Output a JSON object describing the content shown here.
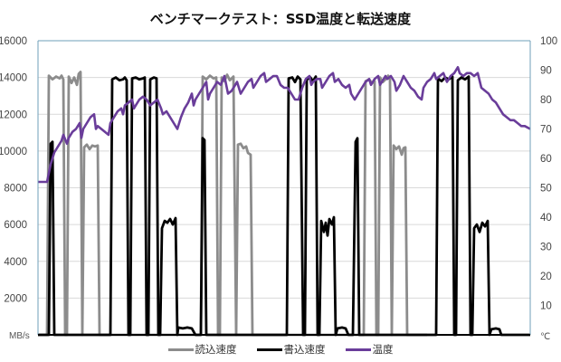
{
  "chart_data": {
    "type": "line",
    "title": "ベンチマークテスト：SSD温度と転送速度",
    "xlabel": "",
    "y_left": {
      "label": "MB/s",
      "ticks": [
        2000,
        4000,
        6000,
        8000,
        10000,
        12000,
        14000,
        16000
      ],
      "range": [
        0,
        16000
      ]
    },
    "y_right": {
      "label": "℃",
      "ticks": [
        10,
        20,
        30,
        40,
        50,
        60,
        70,
        80,
        90,
        100
      ],
      "range": [
        0,
        100
      ]
    },
    "grid": true,
    "legend_position": "bottom",
    "x_range": [
      0,
      544
    ],
    "series": [
      {
        "name": "読込速度",
        "axis": "left",
        "color": "#8c8c8c",
        "points": [
          [
            0,
            0
          ],
          [
            10,
            0
          ],
          [
            12,
            14100
          ],
          [
            16,
            13900
          ],
          [
            20,
            14050
          ],
          [
            24,
            13950
          ],
          [
            26,
            14100
          ],
          [
            28,
            13900
          ],
          [
            30,
            0
          ],
          [
            32,
            0
          ],
          [
            34,
            14050
          ],
          [
            37,
            13700
          ],
          [
            40,
            14000
          ],
          [
            43,
            13600
          ],
          [
            45,
            14200
          ],
          [
            47,
            14300
          ],
          [
            49,
            0
          ],
          [
            51,
            10200
          ],
          [
            54,
            10350
          ],
          [
            57,
            10100
          ],
          [
            60,
            10300
          ],
          [
            63,
            10250
          ],
          [
            66,
            10300
          ],
          [
            68,
            0
          ],
          [
            95,
            0
          ],
          [
            180,
            0
          ],
          [
            182,
            14050
          ],
          [
            186,
            13900
          ],
          [
            190,
            14100
          ],
          [
            194,
            13950
          ],
          [
            197,
            14000
          ],
          [
            199,
            0
          ],
          [
            201,
            0
          ],
          [
            203,
            14000
          ],
          [
            206,
            13800
          ],
          [
            209,
            14150
          ],
          [
            212,
            13850
          ],
          [
            216,
            14050
          ],
          [
            219,
            0
          ],
          [
            221,
            10350
          ],
          [
            224,
            10400
          ],
          [
            227,
            10150
          ],
          [
            230,
            10250
          ],
          [
            232,
            9900
          ],
          [
            235,
            9800
          ],
          [
            237,
            0
          ],
          [
            240,
            0
          ],
          [
            360,
            0
          ],
          [
            362,
            13800
          ],
          [
            366,
            13900
          ],
          [
            369,
            13700
          ],
          [
            372,
            13800
          ],
          [
            374,
            0
          ],
          [
            376,
            0
          ],
          [
            378,
            14000
          ],
          [
            381,
            13750
          ],
          [
            384,
            13900
          ],
          [
            387,
            14100
          ],
          [
            389,
            13900
          ],
          [
            391,
            0
          ],
          [
            393,
            10300
          ],
          [
            396,
            10100
          ],
          [
            399,
            10250
          ],
          [
            402,
            9800
          ],
          [
            404,
            10150
          ],
          [
            406,
            10200
          ],
          [
            408,
            0
          ],
          [
            430,
            0
          ]
        ]
      },
      {
        "name": "書込速度",
        "axis": "left",
        "color": "#000000",
        "points": [
          [
            0,
            0
          ],
          [
            12,
            0
          ],
          [
            14,
            10400
          ],
          [
            16,
            10500
          ],
          [
            18,
            0
          ],
          [
            80,
            0
          ],
          [
            82,
            13900
          ],
          [
            86,
            14000
          ],
          [
            90,
            13850
          ],
          [
            94,
            13900
          ],
          [
            96,
            14000
          ],
          [
            98,
            13850
          ],
          [
            100,
            0
          ],
          [
            102,
            0
          ],
          [
            104,
            13950
          ],
          [
            108,
            14000
          ],
          [
            112,
            13900
          ],
          [
            116,
            13950
          ],
          [
            118,
            14000
          ],
          [
            120,
            0
          ],
          [
            122,
            0
          ],
          [
            124,
            13900
          ],
          [
            128,
            14000
          ],
          [
            131,
            13950
          ],
          [
            133,
            0
          ],
          [
            135,
            0
          ],
          [
            137,
            5800
          ],
          [
            140,
            6200
          ],
          [
            143,
            6100
          ],
          [
            146,
            6300
          ],
          [
            149,
            6000
          ],
          [
            152,
            6350
          ],
          [
            154,
            0
          ],
          [
            155,
            400
          ],
          [
            160,
            350
          ],
          [
            165,
            400
          ],
          [
            170,
            350
          ],
          [
            174,
            0
          ],
          [
            180,
            0
          ],
          [
            182,
            10700
          ],
          [
            184,
            10600
          ],
          [
            186,
            0
          ],
          [
            275,
            0
          ],
          [
            277,
            13950
          ],
          [
            281,
            14000
          ],
          [
            284,
            13750
          ],
          [
            287,
            14050
          ],
          [
            290,
            13900
          ],
          [
            293,
            0
          ],
          [
            295,
            0
          ],
          [
            297,
            13900
          ],
          [
            301,
            14000
          ],
          [
            304,
            13800
          ],
          [
            307,
            14050
          ],
          [
            309,
            0
          ],
          [
            311,
            0
          ],
          [
            313,
            6200
          ],
          [
            316,
            5600
          ],
          [
            318,
            6100
          ],
          [
            320,
            5400
          ],
          [
            322,
            6300
          ],
          [
            325,
            6000
          ],
          [
            327,
            6400
          ],
          [
            329,
            0
          ],
          [
            331,
            350
          ],
          [
            336,
            400
          ],
          [
            340,
            350
          ],
          [
            343,
            0
          ],
          [
            348,
            0
          ],
          [
            351,
            10500
          ],
          [
            353,
            10700
          ],
          [
            355,
            0
          ],
          [
            440,
            0
          ],
          [
            442,
            13950
          ],
          [
            446,
            13800
          ],
          [
            450,
            14000
          ],
          [
            454,
            13900
          ],
          [
            458,
            14050
          ],
          [
            460,
            0
          ],
          [
            462,
            0
          ],
          [
            464,
            13850
          ],
          [
            468,
            14000
          ],
          [
            472,
            13900
          ],
          [
            476,
            14050
          ],
          [
            478,
            0
          ],
          [
            480,
            0
          ],
          [
            482,
            5800
          ],
          [
            485,
            6000
          ],
          [
            488,
            5600
          ],
          [
            491,
            6100
          ],
          [
            494,
            5900
          ],
          [
            497,
            6200
          ],
          [
            499,
            0
          ],
          [
            501,
            300
          ],
          [
            506,
            350
          ],
          [
            510,
            300
          ],
          [
            512,
            0
          ],
          [
            544,
            0
          ]
        ]
      },
      {
        "name": "温度",
        "axis": "right",
        "color": "#6a3d9a",
        "points": [
          [
            0,
            52
          ],
          [
            10,
            52
          ],
          [
            14,
            58
          ],
          [
            18,
            62
          ],
          [
            22,
            64
          ],
          [
            26,
            66
          ],
          [
            28,
            68
          ],
          [
            32,
            65
          ],
          [
            34,
            67
          ],
          [
            38,
            69
          ],
          [
            42,
            70
          ],
          [
            46,
            72
          ],
          [
            48,
            67
          ],
          [
            50,
            70
          ],
          [
            54,
            72
          ],
          [
            58,
            74
          ],
          [
            62,
            75
          ],
          [
            64,
            70
          ],
          [
            66,
            71
          ],
          [
            70,
            70
          ],
          [
            74,
            69
          ],
          [
            78,
            68
          ],
          [
            80,
            72
          ],
          [
            84,
            74
          ],
          [
            88,
            76
          ],
          [
            92,
            77
          ],
          [
            94,
            75
          ],
          [
            96,
            78
          ],
          [
            100,
            79
          ],
          [
            104,
            80
          ],
          [
            106,
            77
          ],
          [
            108,
            78
          ],
          [
            112,
            80
          ],
          [
            116,
            81
          ],
          [
            120,
            80
          ],
          [
            124,
            78
          ],
          [
            128,
            79
          ],
          [
            132,
            80
          ],
          [
            136,
            77
          ],
          [
            138,
            75
          ],
          [
            142,
            76
          ],
          [
            146,
            74
          ],
          [
            150,
            72
          ],
          [
            154,
            70
          ],
          [
            158,
            74
          ],
          [
            162,
            77
          ],
          [
            166,
            79
          ],
          [
            170,
            82
          ],
          [
            172,
            78
          ],
          [
            174,
            80
          ],
          [
            178,
            82
          ],
          [
            182,
            84
          ],
          [
            186,
            86
          ],
          [
            188,
            80
          ],
          [
            190,
            82
          ],
          [
            194,
            84
          ],
          [
            198,
            86
          ],
          [
            202,
            85
          ],
          [
            206,
            88
          ],
          [
            208,
            85
          ],
          [
            210,
            82
          ],
          [
            214,
            83
          ],
          [
            218,
            85
          ],
          [
            220,
            86
          ],
          [
            222,
            84
          ],
          [
            224,
            82
          ],
          [
            228,
            84
          ],
          [
            232,
            86
          ],
          [
            236,
            87
          ],
          [
            238,
            84
          ],
          [
            242,
            86
          ],
          [
            246,
            88
          ],
          [
            250,
            89
          ],
          [
            252,
            86
          ],
          [
            256,
            87
          ],
          [
            260,
            88
          ],
          [
            264,
            88
          ],
          [
            268,
            85
          ],
          [
            272,
            84
          ],
          [
            276,
            84
          ],
          [
            280,
            82
          ],
          [
            284,
            80
          ],
          [
            288,
            80
          ],
          [
            292,
            84
          ],
          [
            296,
            87
          ],
          [
            300,
            88
          ],
          [
            302,
            85
          ],
          [
            304,
            86
          ],
          [
            308,
            87
          ],
          [
            312,
            87
          ],
          [
            314,
            84
          ],
          [
            318,
            86
          ],
          [
            322,
            88
          ],
          [
            326,
            89
          ],
          [
            328,
            86
          ],
          [
            332,
            87
          ],
          [
            336,
            85
          ],
          [
            340,
            84
          ],
          [
            344,
            85
          ],
          [
            346,
            82
          ],
          [
            350,
            80
          ],
          [
            354,
            82
          ],
          [
            358,
            84
          ],
          [
            362,
            86
          ],
          [
            366,
            87
          ],
          [
            368,
            85
          ],
          [
            372,
            87
          ],
          [
            376,
            88
          ],
          [
            378,
            85
          ],
          [
            380,
            86
          ],
          [
            384,
            88
          ],
          [
            386,
            87
          ],
          [
            390,
            88
          ],
          [
            394,
            86
          ],
          [
            396,
            83
          ],
          [
            400,
            85
          ],
          [
            404,
            88
          ],
          [
            406,
            87
          ],
          [
            408,
            86
          ],
          [
            412,
            84
          ],
          [
            416,
            83
          ],
          [
            420,
            81
          ],
          [
            424,
            80
          ],
          [
            426,
            84
          ],
          [
            430,
            86
          ],
          [
            434,
            87
          ],
          [
            438,
            89
          ],
          [
            440,
            87
          ],
          [
            444,
            88
          ],
          [
            448,
            89
          ],
          [
            452,
            86
          ],
          [
            456,
            88
          ],
          [
            460,
            89
          ],
          [
            464,
            91
          ],
          [
            466,
            89
          ],
          [
            470,
            88
          ],
          [
            474,
            89
          ],
          [
            478,
            89
          ],
          [
            482,
            88
          ],
          [
            486,
            89
          ],
          [
            490,
            84
          ],
          [
            494,
            83
          ],
          [
            498,
            82
          ],
          [
            502,
            80
          ],
          [
            506,
            79
          ],
          [
            510,
            77
          ],
          [
            514,
            75
          ],
          [
            518,
            74
          ],
          [
            522,
            73
          ],
          [
            526,
            73
          ],
          [
            530,
            72
          ],
          [
            534,
            71
          ],
          [
            538,
            71
          ],
          [
            544,
            70
          ]
        ]
      }
    ]
  },
  "legend": [
    {
      "label": "読込速度",
      "color": "#8c8c8c"
    },
    {
      "label": "書込速度",
      "color": "#000000"
    },
    {
      "label": "温度",
      "color": "#6a3d9a"
    }
  ],
  "style": {
    "grid_color": "#d9d9d9",
    "axis_color": "#6f9fb8"
  }
}
